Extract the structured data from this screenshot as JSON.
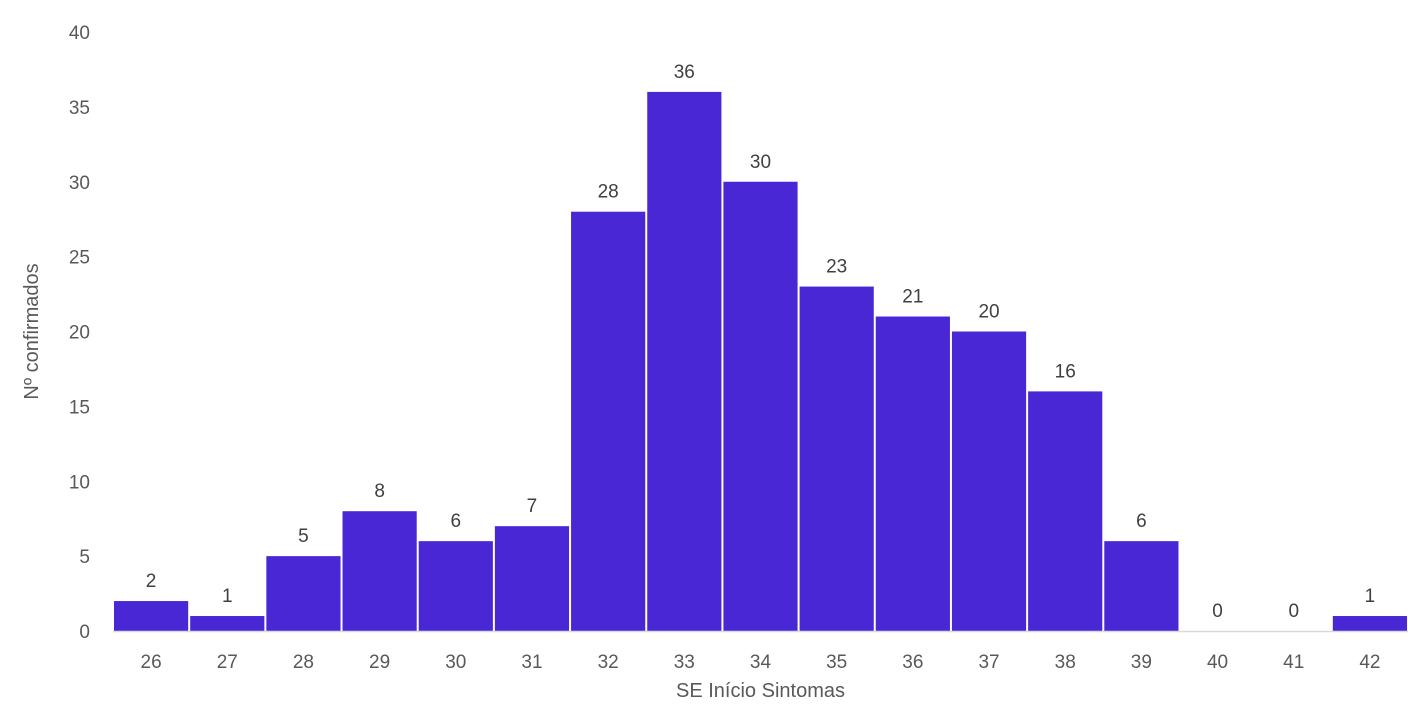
{
  "chart_data": {
    "type": "bar",
    "title": "",
    "xlabel": "SE Início Sintomas",
    "ylabel": "Nº confirmados",
    "categories": [
      "26",
      "27",
      "28",
      "29",
      "30",
      "31",
      "32",
      "33",
      "34",
      "35",
      "36",
      "37",
      "38",
      "39",
      "40",
      "41",
      "42"
    ],
    "values": [
      2,
      1,
      5,
      8,
      6,
      7,
      28,
      36,
      30,
      23,
      21,
      20,
      16,
      6,
      0,
      0,
      1
    ],
    "ylim": [
      0,
      40
    ],
    "yticks": [
      0,
      5,
      10,
      15,
      20,
      25,
      30,
      35,
      40
    ],
    "grid": false,
    "legend": "none",
    "bar_color": "#4a27d4",
    "axis_color": "#d9d9d9"
  }
}
